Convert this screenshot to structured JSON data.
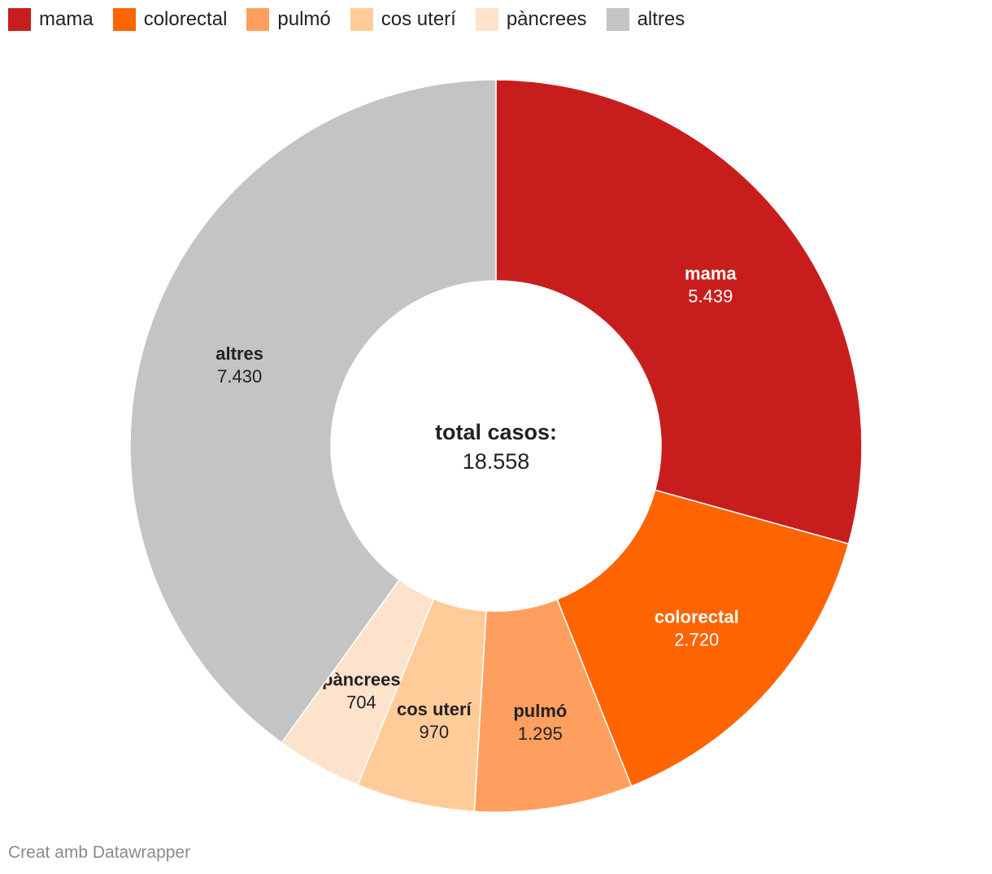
{
  "chart_data": {
    "type": "pie",
    "variant": "donut",
    "slices": [
      {
        "label": "mama",
        "value": 5439,
        "value_label": "5.439",
        "color": "#c71e1d",
        "label_color": "#ffffff"
      },
      {
        "label": "colorectal",
        "value": 2720,
        "value_label": "2.720",
        "color": "#fe6400",
        "label_color": "#ffffff"
      },
      {
        "label": "pulmó",
        "value": 1295,
        "value_label": "1.295",
        "color": "#ff9f5f",
        "label_color": "#222222"
      },
      {
        "label": "cos uterí",
        "value": 970,
        "value_label": "970",
        "color": "#ffcc99",
        "label_color": "#222222"
      },
      {
        "label": "pàncrees",
        "value": 704,
        "value_label": "704",
        "color": "#fde2cc",
        "label_color": "#222222"
      },
      {
        "label": "altres",
        "value": 7430,
        "value_label": "7.430",
        "color": "#c4c4c4",
        "label_color": "#222222"
      }
    ],
    "center_label": "total casos:",
    "center_value": "18.558",
    "legend_placement": "top-left"
  },
  "footer": {
    "credit": "Creat amb Datawrapper"
  }
}
